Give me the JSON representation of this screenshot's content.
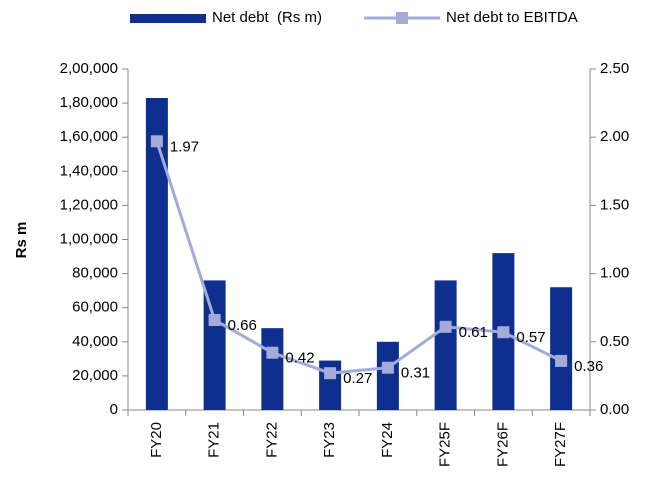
{
  "chart_data": {
    "type": "bar_line",
    "categories": [
      "FY20",
      "FY21",
      "FY22",
      "FY23",
      "FY24",
      "FY25F",
      "FY26F",
      "FY27F"
    ],
    "series": [
      {
        "name": "Net debt  (Rs m)",
        "color": "#0f2f8f",
        "type": "bar",
        "values": [
          183000,
          76000,
          48000,
          29000,
          40000,
          76000,
          92000,
          72000
        ]
      },
      {
        "name": "Net debt to EBITDA",
        "color": "#a3acd9",
        "type": "line",
        "axis": "y2",
        "values": [
          1.97,
          0.66,
          0.42,
          0.27,
          0.31,
          0.61,
          0.57,
          0.36
        ]
      }
    ],
    "ylabel": "Rs m",
    "ylim": [
      0,
      200000
    ],
    "yticks": [
      0,
      {
        "value": 20000,
        "label": "20,000"
      },
      {
        "value": 40000,
        "label": "40,000"
      },
      {
        "value": 60000,
        "label": "60,000"
      },
      {
        "value": 80000,
        "label": "80,000"
      },
      {
        "value": 100000,
        "label": "1,00,000"
      },
      {
        "value": 120000,
        "label": "1,20,000"
      },
      {
        "value": 140000,
        "label": "1,40,000"
      },
      {
        "value": 160000,
        "label": "1,60,000"
      },
      {
        "value": 180000,
        "label": "1,80,000"
      },
      {
        "value": 200000,
        "label": "2,00,000"
      }
    ],
    "y2lim": [
      0,
      2.5
    ],
    "y2ticks": [
      {
        "value": 0,
        "label": "0.00"
      },
      {
        "value": 0.5,
        "label": "0.50"
      },
      {
        "value": 1,
        "label": "1.00"
      },
      {
        "value": 1.5,
        "label": "1.50"
      },
      {
        "value": 2,
        "label": "2.00"
      },
      {
        "value": 2.5,
        "label": "2.50"
      }
    ],
    "legend": "top",
    "grid": false
  }
}
